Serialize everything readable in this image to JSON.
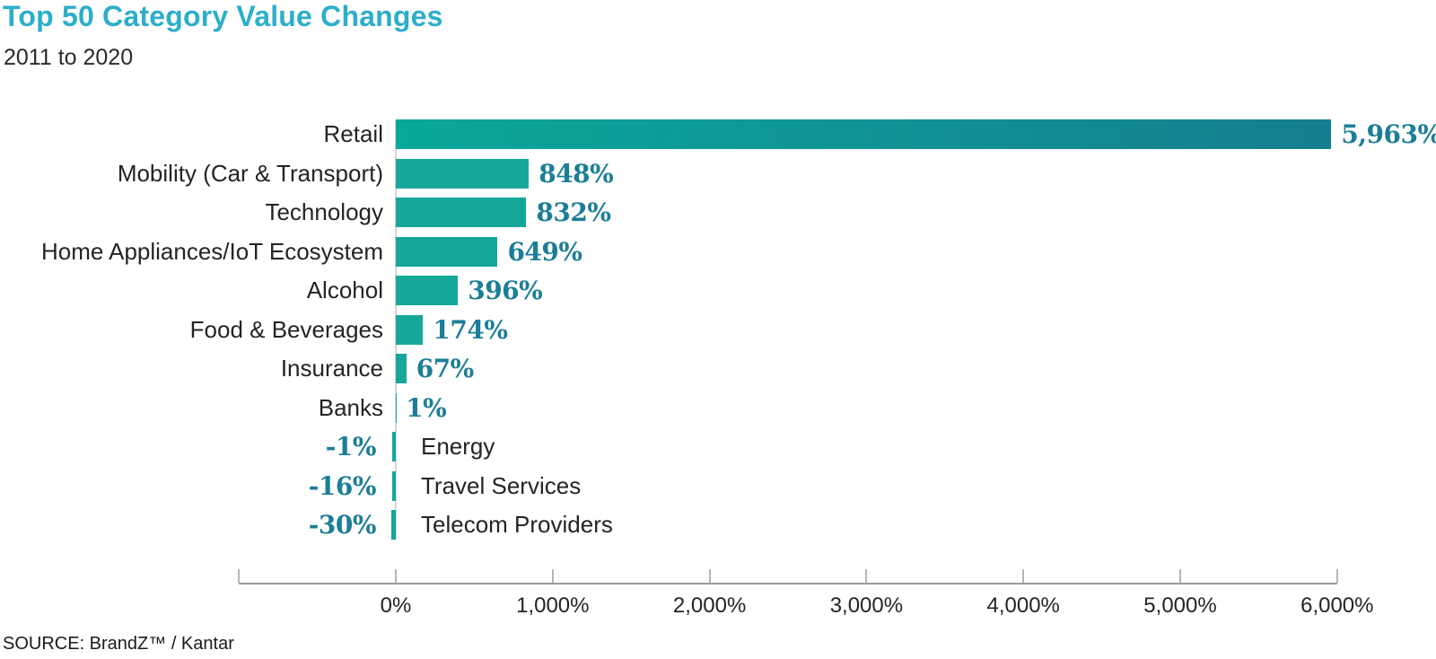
{
  "header": {
    "title": "Top 50 Category Value Changes",
    "subtitle": "2011 to 2020"
  },
  "footer": {
    "source": "SOURCE: BrandZ™ / Kantar"
  },
  "colors": {
    "title": "#2DAEC9",
    "bar": "#16A79B",
    "bar_gradient_from": "#09A89A",
    "bar_gradient_to": "#157E90",
    "value_label": "#1C7E96",
    "axis_line": "#9B9B9B",
    "tick": "#B5B5B5",
    "zero_line": "#D3D7DA",
    "text": "#2B2B2B"
  },
  "chart_data": {
    "type": "bar",
    "orientation": "horizontal",
    "title": "Top 50 Category Value Changes",
    "subtitle": "2011 to 2020",
    "unit": "%",
    "grid": "off",
    "legend": "none",
    "categories": [
      "Retail",
      "Mobility (Car & Transport)",
      "Technology",
      "Home Appliances/IoT Ecosystem",
      "Alcohol",
      "Food & Beverages",
      "Insurance",
      "Banks",
      "Energy",
      "Travel Services",
      "Telecom Providers"
    ],
    "values": [
      5963,
      848,
      832,
      649,
      396,
      174,
      67,
      1,
      -1,
      -16,
      -30
    ],
    "value_labels": [
      "5,963%",
      "848%",
      "832%",
      "649%",
      "396%",
      "174%",
      "67%",
      "1%",
      "-1%",
      "-16%",
      "-30%"
    ],
    "x_axis": {
      "xlim": [
        -1000,
        6000
      ],
      "tick_values": [
        -1000,
        0,
        1000,
        2000,
        3000,
        4000,
        5000,
        6000
      ],
      "tick_labels": [
        "",
        "0%",
        "1,000%",
        "2,000%",
        "3,000%",
        "4,000%",
        "5,000%",
        "6,000%"
      ]
    },
    "source": "SOURCE: BrandZ™ / Kantar"
  }
}
